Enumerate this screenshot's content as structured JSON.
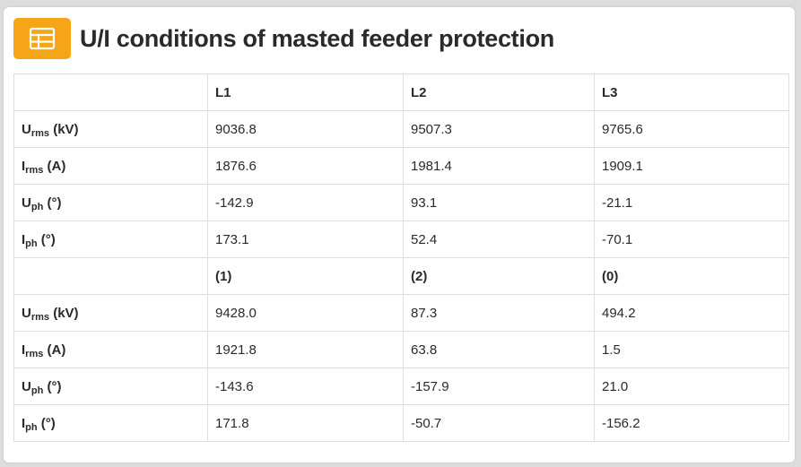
{
  "header": {
    "title": "U/I conditions of masted feeder protection",
    "icon": "table-icon",
    "accent": "#f5a516"
  },
  "table": {
    "phase_headers": [
      "L1",
      "L2",
      "L3"
    ],
    "sequence_headers": [
      "(1)",
      "(2)",
      "(0)"
    ],
    "phase_rows": [
      {
        "sym": "U",
        "sub": "rms",
        "unit": " (kV)",
        "values": [
          "9036.8",
          "9507.3",
          "9765.6"
        ]
      },
      {
        "sym": "I",
        "sub": "rms",
        "unit": " (A)",
        "values": [
          "1876.6",
          "1981.4",
          "1909.1"
        ]
      },
      {
        "sym": "U",
        "sub": "ph",
        "unit": " (°)",
        "values": [
          "-142.9",
          "93.1",
          "-21.1"
        ]
      },
      {
        "sym": "I",
        "sub": "ph",
        "unit": " (°)",
        "values": [
          "173.1",
          "52.4",
          "-70.1"
        ]
      }
    ],
    "sequence_rows": [
      {
        "sym": "U",
        "sub": "rms",
        "unit": " (kV)",
        "values": [
          "9428.0",
          "87.3",
          "494.2"
        ]
      },
      {
        "sym": "I",
        "sub": "rms",
        "unit": " (A)",
        "values": [
          "1921.8",
          "63.8",
          "1.5"
        ]
      },
      {
        "sym": "U",
        "sub": "ph",
        "unit": " (°)",
        "values": [
          "-143.6",
          "-157.9",
          "21.0"
        ]
      },
      {
        "sym": "I",
        "sub": "ph",
        "unit": " (°)",
        "values": [
          "171.8",
          "-50.7",
          "-156.2"
        ]
      }
    ]
  }
}
